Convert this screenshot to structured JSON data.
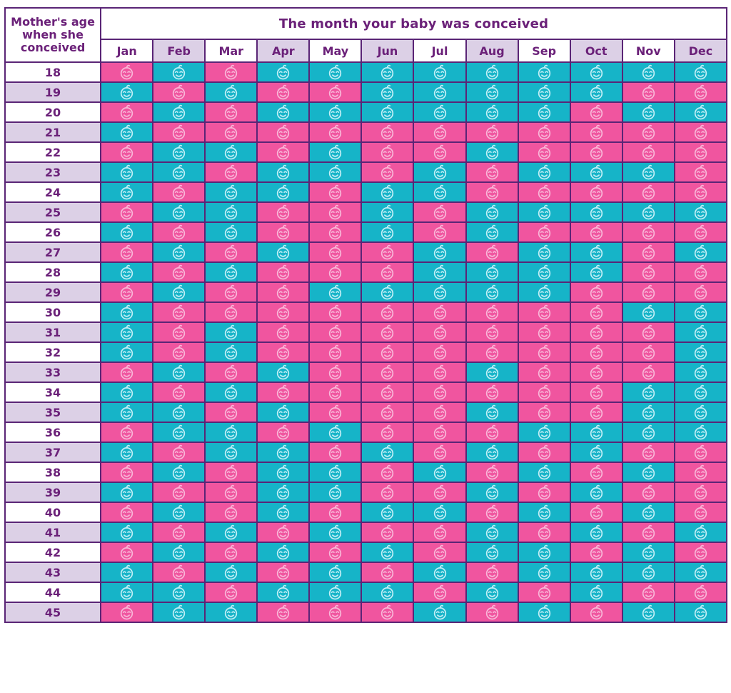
{
  "chart_data": {
    "type": "heatmap",
    "title": "The month your baby was conceived",
    "ylabel": "Mother's age\nwhen she\nconceived",
    "x_categories": [
      "Jan",
      "Feb",
      "Mar",
      "Apr",
      "May",
      "Jun",
      "Jul",
      "Aug",
      "Sep",
      "Oct",
      "Nov",
      "Dec"
    ],
    "y_categories": [
      18,
      19,
      20,
      21,
      22,
      23,
      24,
      25,
      26,
      27,
      28,
      29,
      30,
      31,
      32,
      33,
      34,
      35,
      36,
      37,
      38,
      39,
      40,
      41,
      42,
      43,
      44,
      45
    ],
    "value_key": {
      "P": "pink cell with baby-face icon",
      "B": "blue cell with baby-face icon"
    },
    "values": [
      [
        "P",
        "B",
        "P",
        "B",
        "B",
        "B",
        "B",
        "B",
        "B",
        "B",
        "B",
        "B"
      ],
      [
        "B",
        "P",
        "B",
        "P",
        "P",
        "B",
        "B",
        "B",
        "B",
        "B",
        "P",
        "P"
      ],
      [
        "P",
        "B",
        "P",
        "B",
        "B",
        "B",
        "B",
        "B",
        "B",
        "P",
        "B",
        "B"
      ],
      [
        "B",
        "P",
        "P",
        "P",
        "P",
        "P",
        "P",
        "P",
        "P",
        "P",
        "P",
        "P"
      ],
      [
        "P",
        "B",
        "B",
        "P",
        "B",
        "P",
        "P",
        "B",
        "P",
        "P",
        "P",
        "P"
      ],
      [
        "B",
        "B",
        "P",
        "B",
        "B",
        "P",
        "B",
        "P",
        "B",
        "B",
        "B",
        "P"
      ],
      [
        "B",
        "P",
        "B",
        "B",
        "P",
        "B",
        "B",
        "P",
        "P",
        "P",
        "P",
        "P"
      ],
      [
        "P",
        "B",
        "B",
        "P",
        "P",
        "B",
        "P",
        "B",
        "B",
        "B",
        "B",
        "B"
      ],
      [
        "B",
        "P",
        "B",
        "P",
        "P",
        "B",
        "P",
        "B",
        "P",
        "P",
        "P",
        "P"
      ],
      [
        "P",
        "B",
        "P",
        "B",
        "P",
        "P",
        "B",
        "P",
        "B",
        "B",
        "P",
        "B"
      ],
      [
        "B",
        "P",
        "B",
        "P",
        "P",
        "P",
        "B",
        "B",
        "B",
        "B",
        "P",
        "P"
      ],
      [
        "P",
        "B",
        "P",
        "P",
        "B",
        "B",
        "B",
        "B",
        "B",
        "P",
        "P",
        "P"
      ],
      [
        "B",
        "P",
        "P",
        "P",
        "P",
        "P",
        "P",
        "P",
        "P",
        "P",
        "B",
        "B"
      ],
      [
        "B",
        "P",
        "B",
        "P",
        "P",
        "P",
        "P",
        "P",
        "P",
        "P",
        "P",
        "B"
      ],
      [
        "B",
        "P",
        "B",
        "P",
        "P",
        "P",
        "P",
        "P",
        "P",
        "P",
        "P",
        "B"
      ],
      [
        "P",
        "B",
        "P",
        "B",
        "P",
        "P",
        "P",
        "B",
        "P",
        "P",
        "P",
        "B"
      ],
      [
        "B",
        "P",
        "B",
        "P",
        "P",
        "P",
        "P",
        "P",
        "P",
        "P",
        "B",
        "B"
      ],
      [
        "B",
        "B",
        "P",
        "B",
        "P",
        "P",
        "P",
        "B",
        "P",
        "P",
        "B",
        "B"
      ],
      [
        "P",
        "B",
        "B",
        "P",
        "B",
        "P",
        "P",
        "P",
        "B",
        "B",
        "B",
        "B"
      ],
      [
        "B",
        "P",
        "B",
        "B",
        "P",
        "B",
        "P",
        "B",
        "P",
        "B",
        "P",
        "P"
      ],
      [
        "P",
        "B",
        "P",
        "B",
        "B",
        "P",
        "B",
        "P",
        "B",
        "P",
        "B",
        "P"
      ],
      [
        "B",
        "P",
        "P",
        "B",
        "B",
        "P",
        "P",
        "B",
        "P",
        "B",
        "P",
        "P"
      ],
      [
        "P",
        "B",
        "P",
        "B",
        "P",
        "B",
        "B",
        "P",
        "B",
        "P",
        "B",
        "P"
      ],
      [
        "B",
        "P",
        "B",
        "P",
        "B",
        "P",
        "P",
        "B",
        "P",
        "B",
        "P",
        "B"
      ],
      [
        "P",
        "B",
        "P",
        "B",
        "P",
        "B",
        "P",
        "B",
        "B",
        "P",
        "B",
        "P"
      ],
      [
        "B",
        "P",
        "B",
        "P",
        "B",
        "P",
        "B",
        "P",
        "B",
        "B",
        "B",
        "B"
      ],
      [
        "B",
        "B",
        "P",
        "B",
        "B",
        "B",
        "P",
        "B",
        "P",
        "B",
        "P",
        "P"
      ],
      [
        "P",
        "B",
        "B",
        "P",
        "P",
        "P",
        "B",
        "P",
        "B",
        "P",
        "B",
        "B"
      ]
    ],
    "legend_position": "none",
    "grid": true
  },
  "icons": {
    "cell_icon": "baby-face-icon"
  },
  "colors": {
    "pink_cell": "#f0559f",
    "blue_cell": "#16b4c8",
    "pink_icon": "#f8b7d8",
    "blue_icon": "#c2eef5",
    "grid_border": "#5a2576",
    "pink_bottom_border": "#bc2068",
    "blue_bottom_border": "#2b3a94",
    "header_text": "#6b2179",
    "alt_header_bg": "#dcd0e6",
    "header_bg": "#ffffff"
  }
}
